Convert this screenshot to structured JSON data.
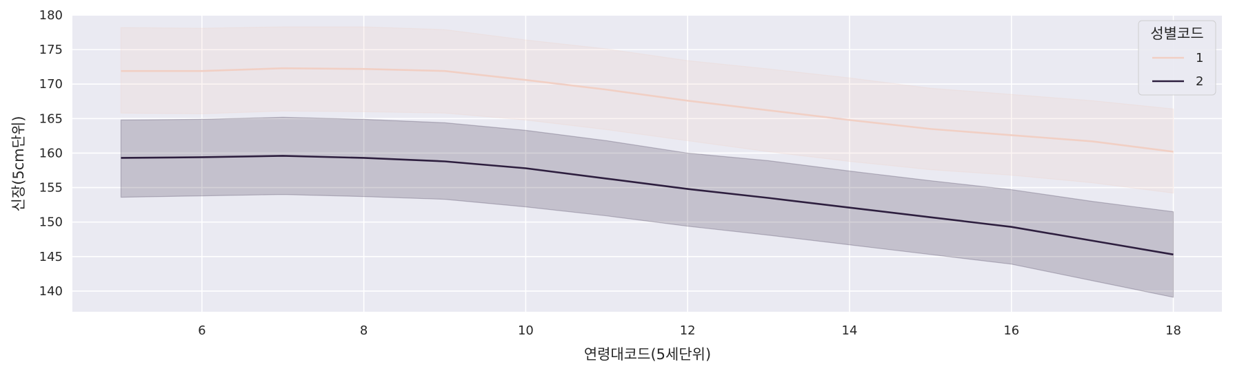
{
  "chart_data": {
    "type": "line",
    "xlabel": "연령대코드(5세단위)",
    "ylabel": "신장(5cm단위)",
    "xlim": [
      4.4,
      18.6
    ],
    "ylim": [
      137,
      180
    ],
    "xticks": [
      6,
      8,
      10,
      12,
      14,
      16,
      18
    ],
    "yticks": [
      140,
      145,
      150,
      155,
      160,
      165,
      170,
      175,
      180
    ],
    "grid": true,
    "legend": {
      "title": "성별코드",
      "placement": "top-right"
    },
    "series": [
      {
        "name": "1",
        "color": "#f1cfc4",
        "x": [
          5,
          6,
          7,
          8,
          9,
          10,
          11,
          12,
          13,
          14,
          15,
          16,
          17,
          18
        ],
        "y": [
          171.9,
          171.9,
          172.3,
          172.2,
          171.9,
          170.6,
          169.2,
          167.6,
          166.2,
          164.8,
          163.5,
          162.6,
          161.7,
          160.2
        ],
        "ci_lower": [
          165.8,
          165.7,
          166.1,
          166.0,
          165.8,
          164.8,
          163.4,
          161.8,
          160.2,
          158.8,
          157.6,
          156.8,
          155.7,
          154.2
        ],
        "ci_upper": [
          178.2,
          178.1,
          178.3,
          178.3,
          177.9,
          176.4,
          175.1,
          173.4,
          172.2,
          170.9,
          169.4,
          168.5,
          167.6,
          166.4
        ]
      },
      {
        "name": "2",
        "color": "#2d1e3e",
        "x": [
          5,
          6,
          7,
          8,
          9,
          10,
          11,
          12,
          13,
          14,
          15,
          16,
          17,
          18
        ],
        "y": [
          159.3,
          159.4,
          159.6,
          159.3,
          158.8,
          157.8,
          156.3,
          154.8,
          153.5,
          152.1,
          150.7,
          149.3,
          147.3,
          145.3
        ],
        "ci_lower": [
          153.6,
          153.8,
          154.0,
          153.7,
          153.3,
          152.2,
          150.9,
          149.4,
          148.1,
          146.7,
          145.3,
          143.9,
          141.5,
          139.1
        ],
        "ci_upper": [
          164.8,
          164.9,
          165.2,
          164.9,
          164.4,
          163.3,
          161.8,
          160.0,
          158.9,
          157.4,
          156.0,
          154.7,
          153.0,
          151.5
        ]
      }
    ]
  }
}
